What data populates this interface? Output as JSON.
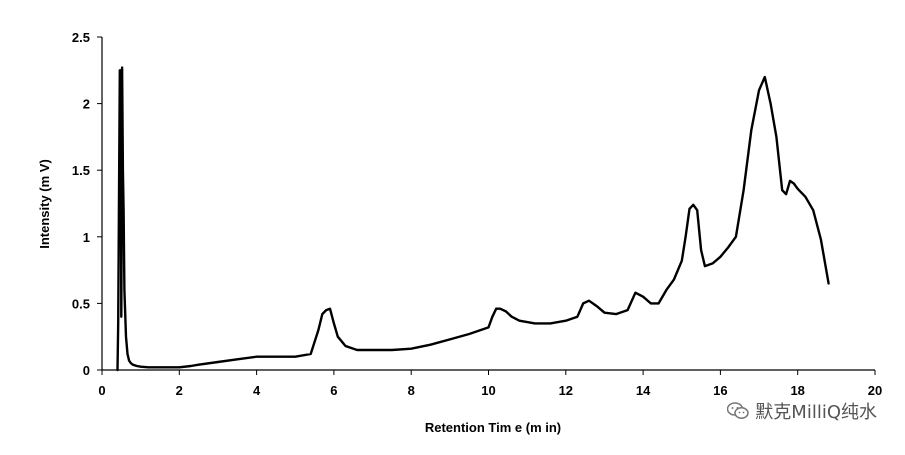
{
  "chart_data": {
    "type": "line",
    "title": "",
    "xlabel": "Retention Tim e (m in)",
    "ylabel": "Intensity (m V)",
    "xlim": [
      0,
      20
    ],
    "ylim": [
      0,
      2.5
    ],
    "x_ticks": [
      "0",
      "2",
      "4",
      "6",
      "8",
      "10",
      "12",
      "14",
      "16",
      "18",
      "20"
    ],
    "y_ticks": [
      "0",
      "0.5",
      "1",
      "1.5",
      "2",
      "2.5"
    ],
    "grid": false,
    "legend": "none",
    "line_color": "#000000",
    "series": [
      {
        "x": [
          0.4,
          0.42,
          0.46,
          0.48,
          0.5,
          0.52,
          0.54,
          0.56,
          0.58,
          0.62,
          0.66,
          0.7,
          0.75,
          0.8,
          0.9,
          1.0,
          1.2,
          1.5,
          2.0,
          2.3,
          2.5,
          3.0,
          3.5,
          4.0,
          4.5,
          5.0,
          5.4,
          5.6,
          5.7,
          5.8,
          5.9,
          6.0,
          6.1,
          6.3,
          6.6,
          7.0,
          7.5,
          8.0,
          8.5,
          9.0,
          9.5,
          10.0,
          10.1,
          10.2,
          10.3,
          10.45,
          10.6,
          10.8,
          11.2,
          11.6,
          12.0,
          12.3,
          12.45,
          12.6,
          12.8,
          13.0,
          13.3,
          13.6,
          13.8,
          14.0,
          14.2,
          14.4,
          14.6,
          14.8,
          15.0,
          15.1,
          15.2,
          15.3,
          15.4,
          15.5,
          15.6,
          15.8,
          16.0,
          16.2,
          16.4,
          16.6,
          16.8,
          17.0,
          17.15,
          17.3,
          17.45,
          17.6,
          17.7,
          17.8,
          17.9,
          18.0,
          18.2,
          18.4,
          18.6,
          18.8
        ],
        "y": [
          0.0,
          0.35,
          2.25,
          2.25,
          0.4,
          2.27,
          1.5,
          1.2,
          0.6,
          0.25,
          0.12,
          0.07,
          0.05,
          0.04,
          0.03,
          0.025,
          0.02,
          0.02,
          0.02,
          0.03,
          0.04,
          0.06,
          0.08,
          0.1,
          0.1,
          0.1,
          0.12,
          0.3,
          0.42,
          0.45,
          0.46,
          0.35,
          0.25,
          0.18,
          0.15,
          0.15,
          0.15,
          0.16,
          0.19,
          0.23,
          0.27,
          0.32,
          0.4,
          0.46,
          0.46,
          0.44,
          0.4,
          0.37,
          0.35,
          0.35,
          0.37,
          0.4,
          0.5,
          0.52,
          0.48,
          0.43,
          0.42,
          0.45,
          0.58,
          0.55,
          0.5,
          0.5,
          0.6,
          0.68,
          0.82,
          1.0,
          1.21,
          1.24,
          1.2,
          0.9,
          0.78,
          0.8,
          0.85,
          0.92,
          1.0,
          1.35,
          1.8,
          2.1,
          2.2,
          2.0,
          1.75,
          1.35,
          1.32,
          1.42,
          1.4,
          1.36,
          1.3,
          1.2,
          0.98,
          0.65
        ]
      }
    ]
  },
  "watermark": {
    "text": "默克MilliQ纯水",
    "icon": "wechat-icon"
  }
}
